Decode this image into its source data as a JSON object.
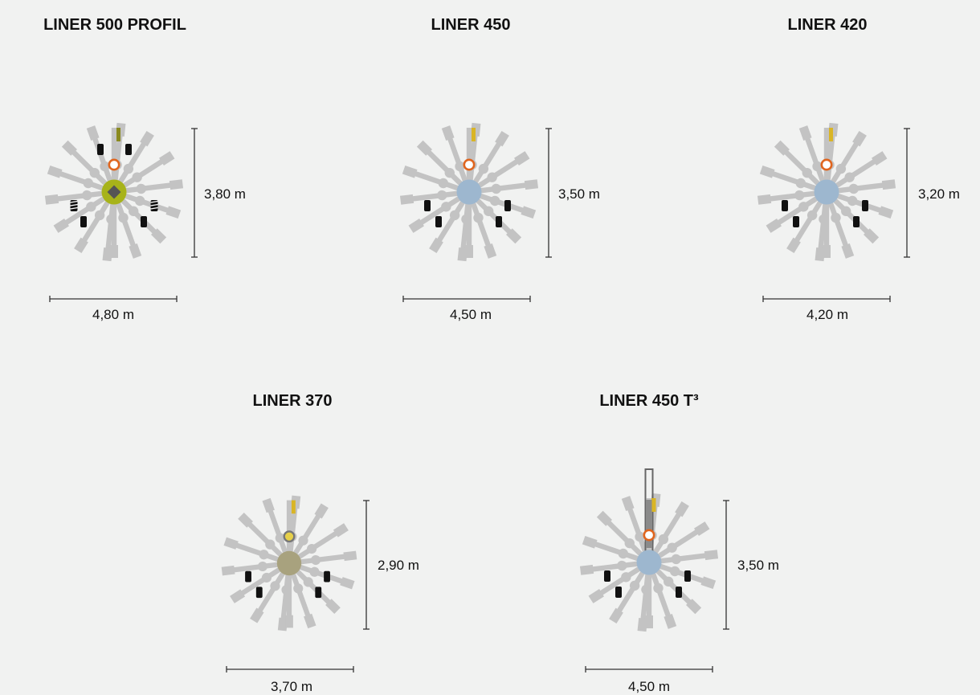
{
  "machines": [
    {
      "id": "liner-500-profil",
      "title": "LINER 500 PROFIL",
      "width": "4,80 m",
      "height": "3,80 m",
      "hub_color": "#a7b31a",
      "hub_mark": "diamond",
      "top_marker": "bar-olive",
      "ring": "orange"
    },
    {
      "id": "liner-450",
      "title": "LINER 450",
      "width": "4,50 m",
      "height": "3,50 m",
      "hub_color": "#9db7cf",
      "top_marker": "bar-yellow",
      "ring": "orange"
    },
    {
      "id": "liner-420",
      "title": "LINER 420",
      "width": "4,20 m",
      "height": "3,20 m",
      "hub_color": "#9db7cf",
      "top_marker": "bar-yellow",
      "ring": "orange"
    },
    {
      "id": "liner-370",
      "title": "LINER 370",
      "width": "3,70 m",
      "height": "2,90 m",
      "hub_color": "#a8a27e",
      "top_marker": "bar-yellow",
      "ring": "yellow-grey"
    },
    {
      "id": "liner-450-t3",
      "title": "LINER 450 T³",
      "width": "4,50 m",
      "height": "3,50 m",
      "hub_color": "#9db7cf",
      "top_marker": "bar-yellow",
      "ring": "orange",
      "mast": true
    }
  ],
  "colors": {
    "background": "#f1f2f1",
    "tine_grey": "#c3c3c3",
    "dimension_line": "#333333",
    "orange": "#e0651e",
    "yellow": "#d9b526",
    "olive": "#8a8a1f",
    "wheel": "#111111"
  }
}
